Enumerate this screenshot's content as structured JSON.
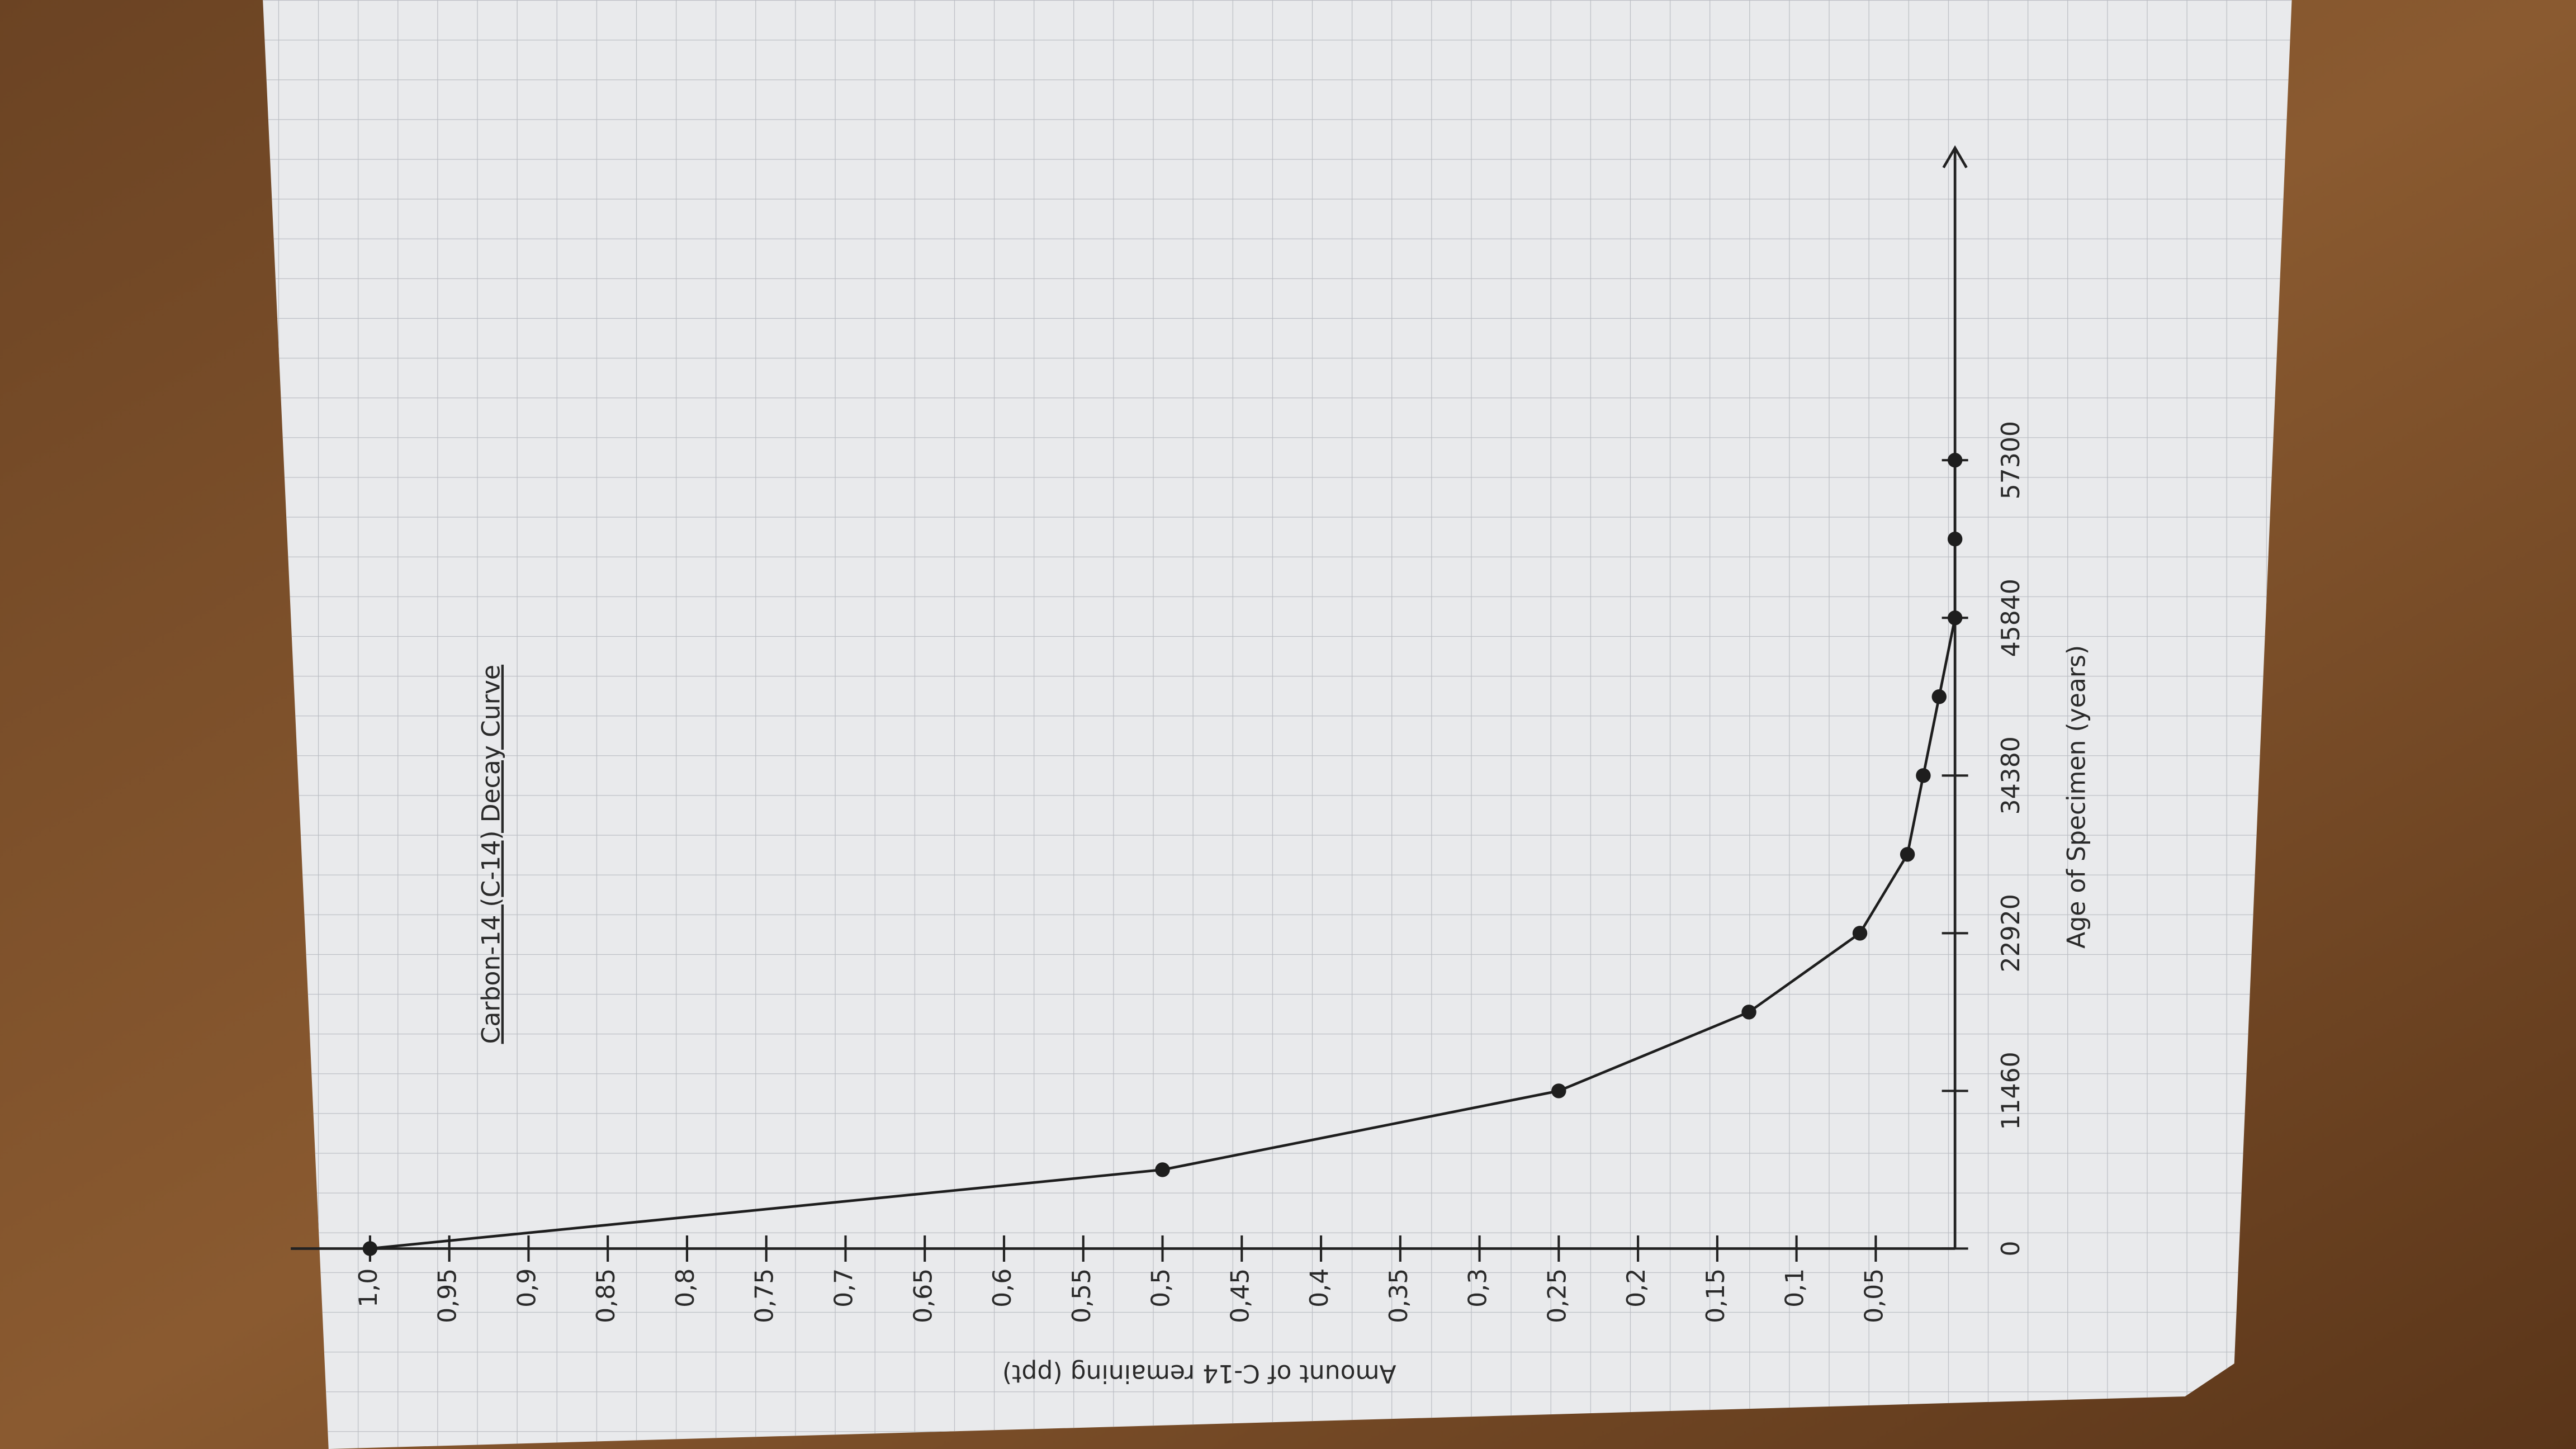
{
  "chart_data": {
    "type": "line",
    "title": "Carbon-14 (C-14) Decay Curve",
    "x_label": "Age of Specimen (years)",
    "y_label": "Amount of C-14 remaining (ppt)",
    "x": [
      0,
      5730,
      11460,
      17190,
      22920,
      28650,
      34380,
      40110,
      45840,
      51570,
      57300
    ],
    "values": [
      1,
      0.5,
      0.25,
      0.13,
      0.06,
      0.03,
      0.02,
      0.01,
      0,
      0,
      0
    ],
    "color": "#1e1e1e",
    "xlim": [
      0,
      80000
    ],
    "xticks": [
      0,
      11460,
      22920,
      34380,
      45840,
      57300
    ],
    "ylim": [
      0,
      1.05
    ],
    "yticks": [
      {
        "value": 0.05,
        "label": "0,05"
      },
      {
        "value": 0.1,
        "label": "0,1"
      },
      {
        "value": 0.15,
        "label": "0,15"
      },
      {
        "value": 0.2,
        "label": "0,2"
      },
      {
        "value": 0.25,
        "label": "0,25"
      },
      {
        "value": 0.3,
        "label": "0,3"
      },
      {
        "value": 0.35,
        "label": "0,35"
      },
      {
        "value": 0.4,
        "label": "0,4"
      },
      {
        "value": 0.45,
        "label": "0,45"
      },
      {
        "value": 0.5,
        "label": "0,5"
      },
      {
        "value": 0.55,
        "label": "0,55"
      },
      {
        "value": 0.6,
        "label": "0,6"
      },
      {
        "value": 0.65,
        "label": "0,65"
      },
      {
        "value": 0.7,
        "label": "0,7"
      },
      {
        "value": 0.75,
        "label": "0,75"
      },
      {
        "value": 0.8,
        "label": "0,8"
      },
      {
        "value": 0.85,
        "label": "0,85"
      },
      {
        "value": 0.9,
        "label": "0,9"
      },
      {
        "value": 0.95,
        "label": "0,95"
      },
      {
        "value": 1.0,
        "label": "1,0"
      }
    ]
  }
}
